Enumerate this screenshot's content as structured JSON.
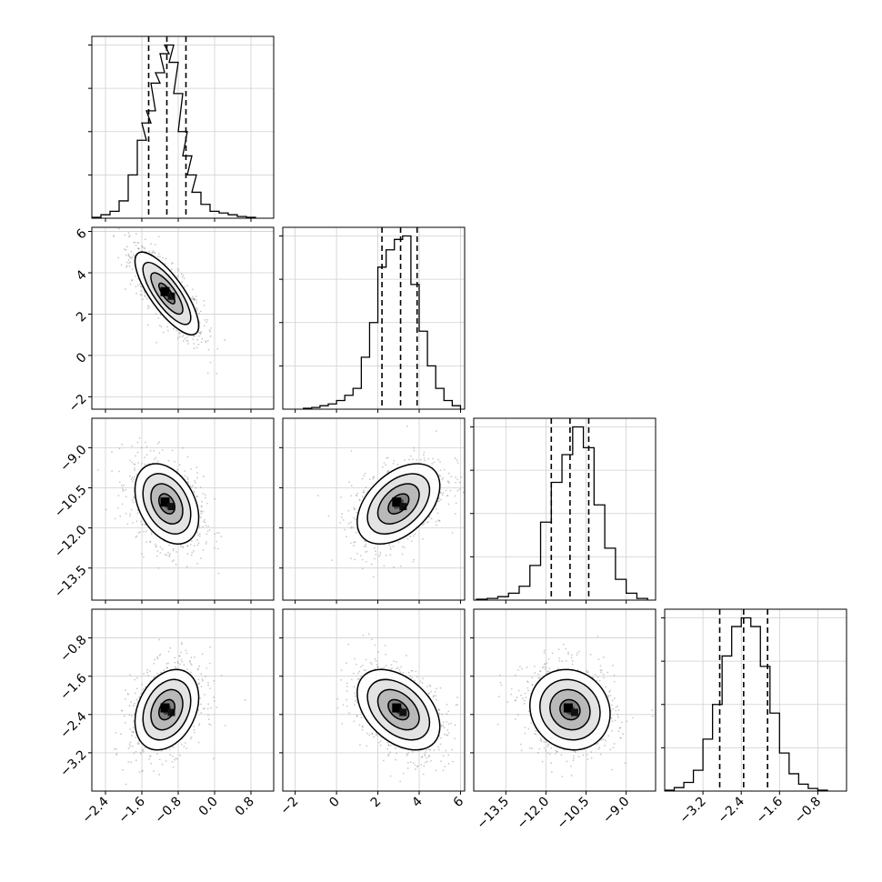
{
  "chart_data": {
    "type": "corner",
    "title": "",
    "parameters": [
      {
        "key": "p1",
        "label": "",
        "range": [
          -2.7,
          1.3
        ],
        "ticks": [
          -2.4,
          -1.6,
          -0.8,
          0.0,
          0.8
        ],
        "tick_labels": [
          "−2.4",
          "−1.6",
          "−0.8",
          "0.0",
          "0.8"
        ]
      },
      {
        "key": "p2",
        "label": "",
        "range": [
          -2.6,
          6.2
        ],
        "ticks": [
          -2,
          0,
          2,
          4,
          6
        ],
        "tick_labels": [
          "−2",
          "0",
          "2",
          "4",
          "6"
        ]
      },
      {
        "key": "p3",
        "label": "",
        "range": [
          -14.7,
          -7.9
        ],
        "ticks": [
          -13.5,
          -12.0,
          -10.5,
          -9.0
        ],
        "tick_labels": [
          "−13.5",
          "−12.0",
          "−10.5",
          "−9.0"
        ]
      },
      {
        "key": "p4",
        "label": "",
        "range": [
          -4.0,
          -0.2
        ],
        "ticks": [
          -3.2,
          -2.4,
          -1.6,
          -0.8
        ],
        "tick_labels": [
          "−3.2",
          "−2.4",
          "−1.6",
          "−0.8"
        ]
      }
    ],
    "marginals": [
      {
        "param": "p1",
        "quantiles": [
          -1.45,
          -1.05,
          -0.63
        ],
        "hist_x": [
          -2.6,
          -2.4,
          -2.2,
          -2.0,
          -1.8,
          -1.6,
          -1.5,
          -1.4,
          -1.3,
          -1.2,
          -1.1,
          -1.0,
          -0.9,
          -0.8,
          -0.7,
          -0.6,
          -0.5,
          -0.4,
          -0.2,
          0.0,
          0.2,
          0.4,
          0.6,
          0.8
        ],
        "hist_y": [
          0.005,
          0.02,
          0.04,
          0.1,
          0.25,
          0.45,
          0.55,
          0.62,
          0.78,
          0.84,
          0.95,
          1.0,
          0.9,
          0.72,
          0.5,
          0.36,
          0.25,
          0.15,
          0.08,
          0.04,
          0.03,
          0.02,
          0.01,
          0.005
        ]
      },
      {
        "param": "p2",
        "quantiles": [
          2.2,
          3.1,
          3.9
        ],
        "hist_x": [
          -1.4,
          -1.0,
          -0.6,
          -0.2,
          0.2,
          0.6,
          1.0,
          1.4,
          1.8,
          2.2,
          2.6,
          3.0,
          3.4,
          3.8,
          4.2,
          4.6,
          5.0,
          5.4,
          5.8
        ],
        "hist_y": [
          0.005,
          0.01,
          0.02,
          0.03,
          0.05,
          0.08,
          0.12,
          0.3,
          0.5,
          0.82,
          0.92,
          0.98,
          1.0,
          0.72,
          0.45,
          0.25,
          0.12,
          0.05,
          0.02
        ]
      },
      {
        "param": "p3",
        "quantiles": [
          -11.8,
          -11.1,
          -10.4
        ],
        "hist_x": [
          -14.4,
          -14.0,
          -13.6,
          -13.2,
          -12.8,
          -12.4,
          -12.0,
          -11.6,
          -11.2,
          -10.8,
          -10.4,
          -10.0,
          -9.6,
          -9.2,
          -8.8,
          -8.4
        ],
        "hist_y": [
          0.005,
          0.01,
          0.02,
          0.04,
          0.08,
          0.2,
          0.45,
          0.68,
          0.84,
          1.0,
          0.88,
          0.55,
          0.3,
          0.12,
          0.04,
          0.01
        ]
      },
      {
        "param": "p4",
        "quantiles": [
          -2.85,
          -2.35,
          -1.85
        ],
        "hist_x": [
          -3.9,
          -3.7,
          -3.5,
          -3.3,
          -3.1,
          -2.9,
          -2.7,
          -2.5,
          -2.3,
          -2.1,
          -1.9,
          -1.7,
          -1.5,
          -1.3,
          -1.1,
          -0.9,
          -0.7
        ],
        "hist_y": [
          0.005,
          0.02,
          0.05,
          0.12,
          0.3,
          0.5,
          0.78,
          0.95,
          1.0,
          0.95,
          0.72,
          0.45,
          0.22,
          0.1,
          0.04,
          0.015,
          0.005
        ]
      }
    ],
    "pairs": [
      {
        "x": "p1",
        "y": "p2",
        "mean": [
          -1.05,
          3.0
        ],
        "sigma": [
          0.35,
          1.0
        ],
        "rho": -0.78
      },
      {
        "x": "p1",
        "y": "p3",
        "mean": [
          -1.05,
          -11.1
        ],
        "sigma": [
          0.35,
          0.75
        ],
        "rho": -0.35
      },
      {
        "x": "p2",
        "y": "p3",
        "mean": [
          3.0,
          -11.1
        ],
        "sigma": [
          1.0,
          0.75
        ],
        "rho": 0.45
      },
      {
        "x": "p1",
        "y": "p4",
        "mean": [
          -1.05,
          -2.3
        ],
        "sigma": [
          0.35,
          0.42
        ],
        "rho": 0.3
      },
      {
        "x": "p2",
        "y": "p4",
        "mean": [
          3.0,
          -2.3
        ],
        "sigma": [
          1.0,
          0.42
        ],
        "rho": -0.42
      },
      {
        "x": "p3",
        "y": "p4",
        "mean": [
          -11.1,
          -2.3
        ],
        "sigma": [
          0.75,
          0.42
        ],
        "rho": -0.1
      }
    ],
    "contour_levels_sigma": [
      0.5,
      1.0,
      1.5,
      2.0
    ],
    "grid": true,
    "legend": "none"
  }
}
